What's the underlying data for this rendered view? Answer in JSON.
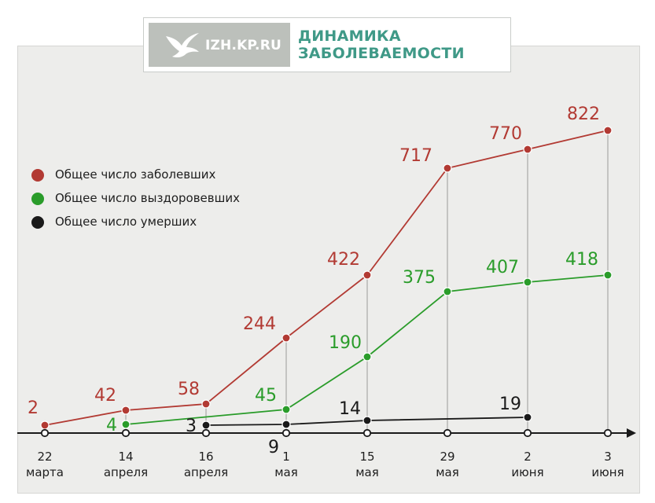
{
  "header": {
    "site": "IZH.KP.RU",
    "title_line1": "ДИНАМИКА",
    "title_line2": "ЗАБОЛЕВАЕМОСТИ"
  },
  "legend": [
    {
      "label": "Общее число заболевших",
      "color": "#b23a33"
    },
    {
      "label": "Общее число выздоровевших",
      "color": "#2a9c2a"
    },
    {
      "label": "Общее число умерших",
      "color": "#1a1a1a"
    }
  ],
  "chart_data": {
    "type": "line",
    "categories": [
      {
        "day": "22",
        "month": "марта"
      },
      {
        "day": "14",
        "month": "апреля"
      },
      {
        "day": "16",
        "month": "апреля"
      },
      {
        "day": "1",
        "month": "мая"
      },
      {
        "day": "15",
        "month": "мая"
      },
      {
        "day": "29",
        "month": "мая"
      },
      {
        "day": "2",
        "month": "июня"
      },
      {
        "day": "3",
        "month": "июня"
      }
    ],
    "series": [
      {
        "name": "Общее число заболевших",
        "color": "#b23a33",
        "values": [
          2,
          42,
          58,
          244,
          422,
          717,
          770,
          822
        ]
      },
      {
        "name": "Общее число выздоровевших",
        "color": "#2a9c2a",
        "values": [
          null,
          4,
          null,
          45,
          190,
          375,
          407,
          418
        ]
      },
      {
        "name": "Общее число умерших",
        "color": "#1a1a1a",
        "values": [
          null,
          null,
          3,
          9,
          14,
          null,
          19,
          null
        ]
      }
    ]
  }
}
